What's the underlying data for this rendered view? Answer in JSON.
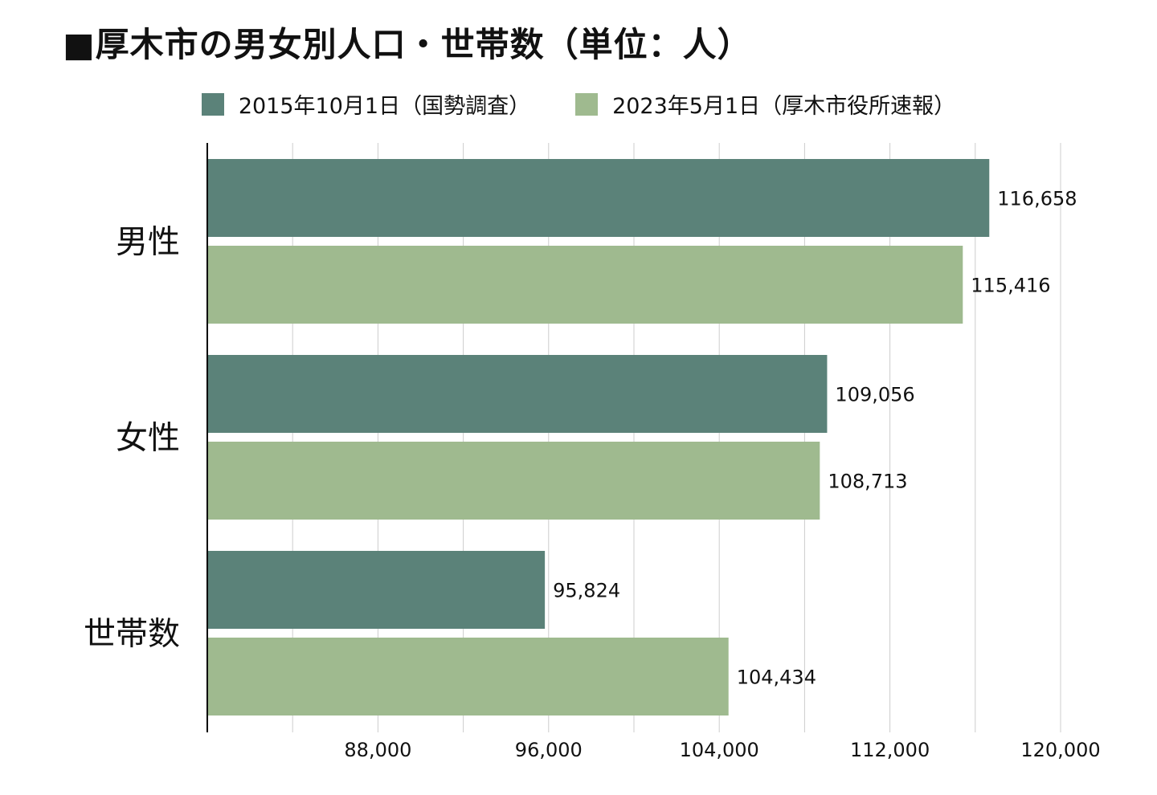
{
  "title": "■厚木市の男女別人口・世帯数（単位：人）",
  "colors": {
    "series1": "#5b8279",
    "series2": "#9fba8f",
    "grid": "#cccccc",
    "axis": "#000000"
  },
  "chart_data": {
    "type": "bar",
    "orientation": "horizontal",
    "title": "■厚木市の男女別人口・世帯数（単位：人）",
    "categories": [
      "男性",
      "女性",
      "世帯数"
    ],
    "series": [
      {
        "name": "2015年10月1日（国勢調査）",
        "values": [
          116658,
          109056,
          95824
        ]
      },
      {
        "name": "2023年5月1日（厚木市役所速報）",
        "values": [
          115416,
          108713,
          104434
        ]
      }
    ],
    "data_labels": [
      [
        "116,658",
        "109,056",
        "95,824"
      ],
      [
        "115,416",
        "108,713",
        "104,434"
      ]
    ],
    "xlim": [
      80000,
      120000
    ],
    "x_ticks": [
      88000,
      96000,
      104000,
      112000,
      120000
    ],
    "x_tick_labels": [
      "88,000",
      "96,000",
      "104,000",
      "112,000",
      "120,000"
    ],
    "minor_grid_step": 4000,
    "grid": true,
    "legend_position": "top"
  }
}
